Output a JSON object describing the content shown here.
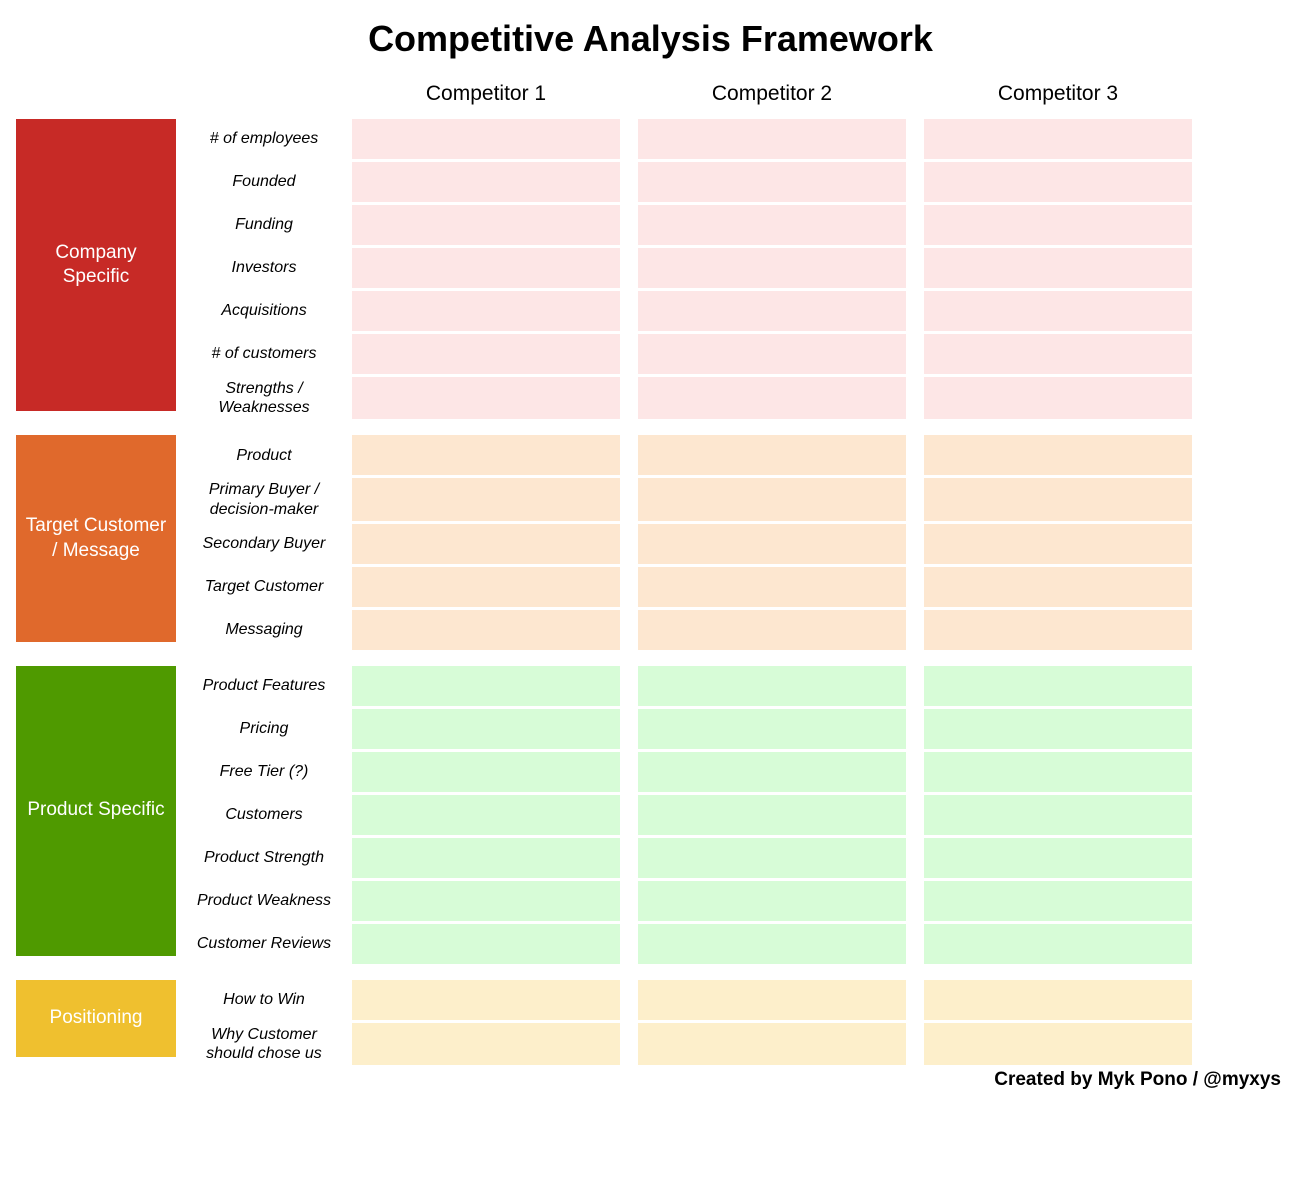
{
  "title": "Competitive Analysis Framework",
  "credit": "Created by Myk Pono / @myxys",
  "competitors": [
    "Competitor 1",
    "Competitor 2",
    "Competitor 3"
  ],
  "colors": {
    "section1_header": "#c72a26",
    "section1_cell": "#fde6e6",
    "section2_header": "#e0692c",
    "section2_cell": "#fde7d0",
    "section3_header": "#4f9a00",
    "section3_cell": "#d7fcd7",
    "section4_header": "#efc02f",
    "section4_cell": "#fdefcb"
  },
  "sections": [
    {
      "name": "Company Specific",
      "rows": [
        "# of employees",
        "Founded",
        "Funding",
        "Investors",
        "Acquisitions",
        "# of customers",
        "Strengths / Weaknesses"
      ]
    },
    {
      "name": "Target Customer / Message",
      "rows": [
        "Product",
        "Primary Buyer / decision-maker",
        "Secondary Buyer",
        "Target Customer",
        "Messaging"
      ]
    },
    {
      "name": "Product Specific",
      "rows": [
        "Product Features",
        "Pricing",
        "Free Tier (?)",
        "Customers",
        "Product Strength",
        "Product Weakness",
        "Customer Reviews"
      ]
    },
    {
      "name": "Positioning",
      "rows": [
        "How to Win",
        "Why Customer should chose us"
      ]
    }
  ]
}
